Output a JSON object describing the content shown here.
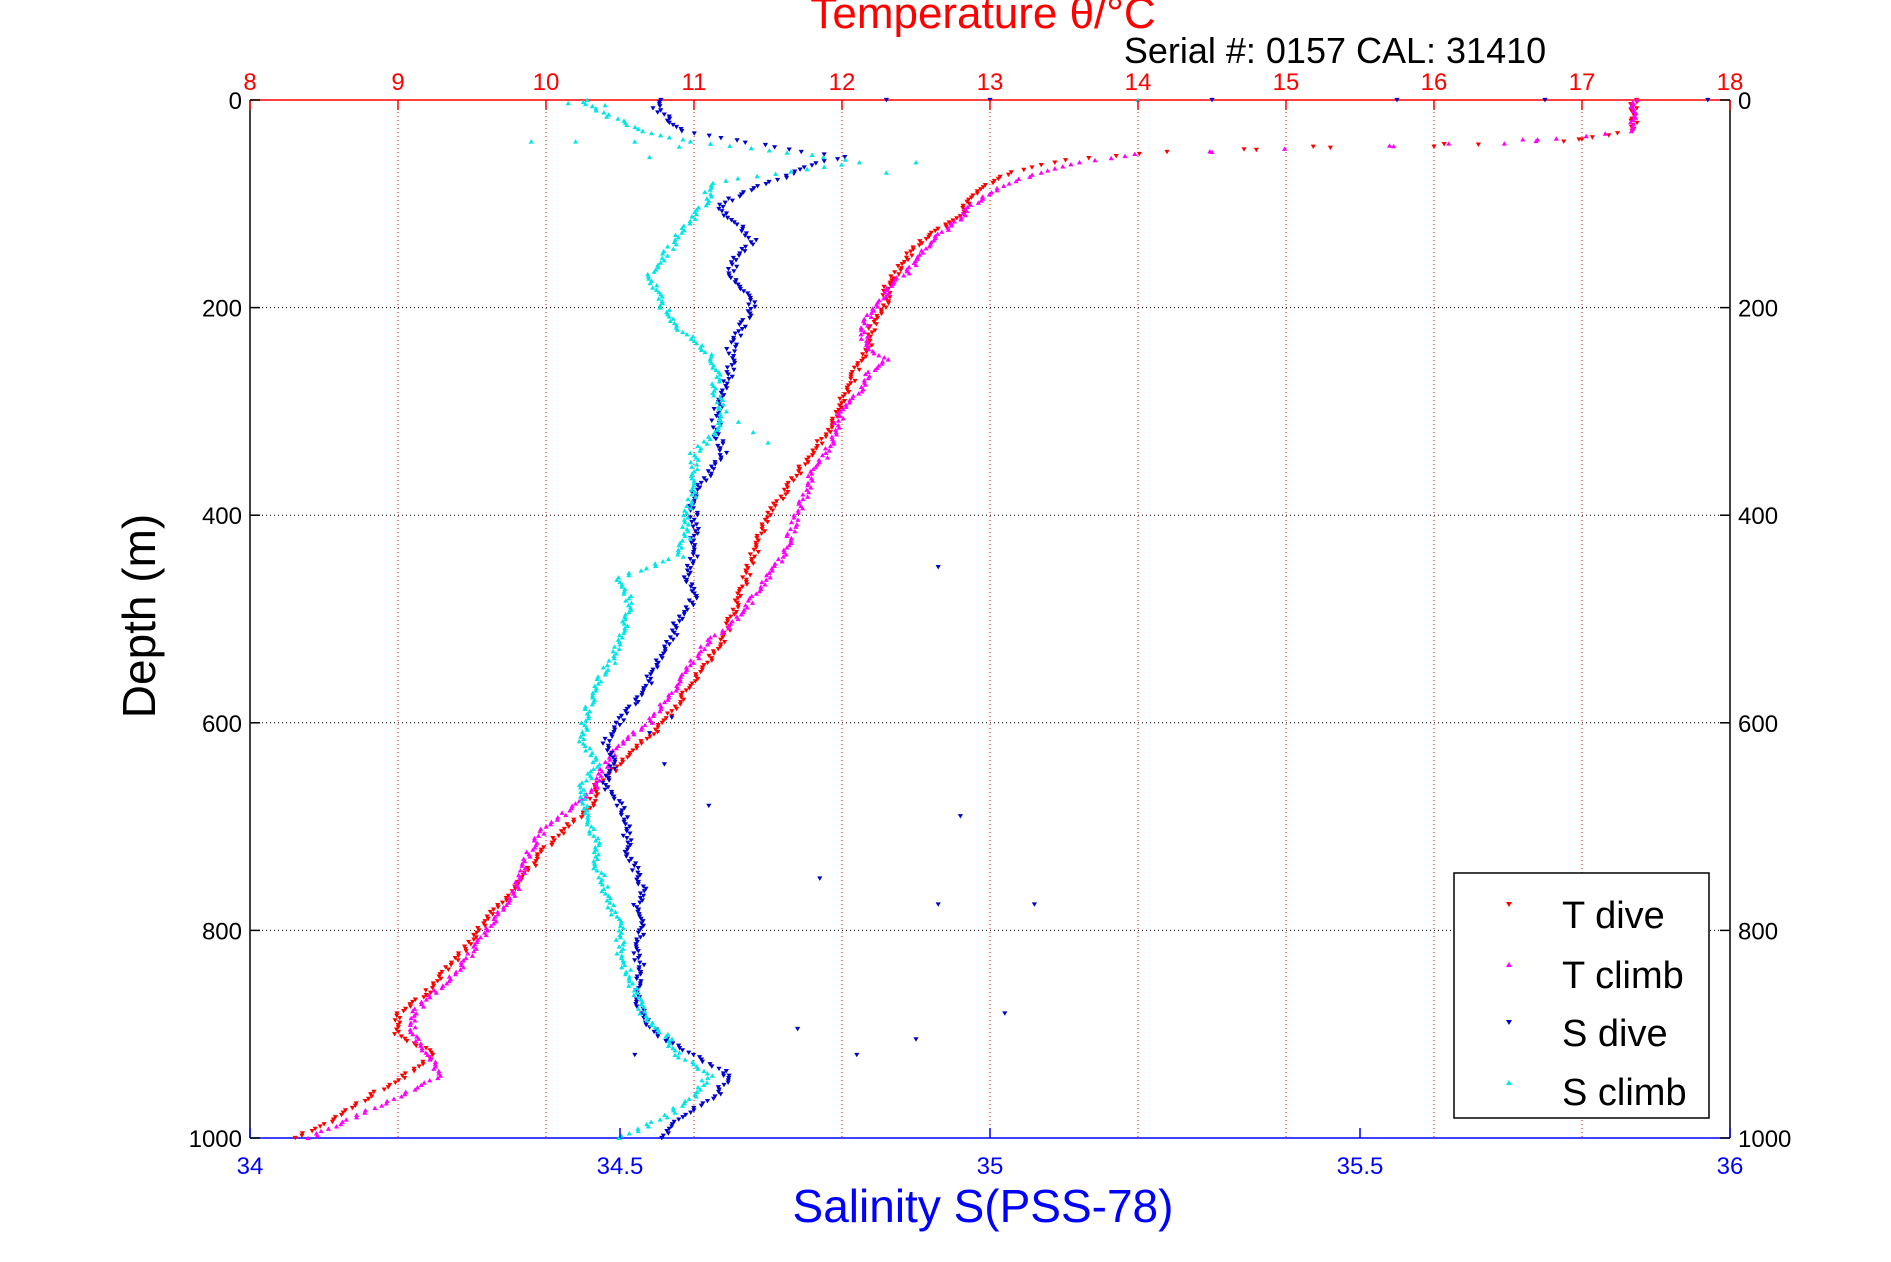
{
  "chart_data": {
    "type": "scatter",
    "title": "Temperature θ/°C",
    "subtitle": "Serial #: 0157  CAL: 31410",
    "xlabel": "Salinity S(PSS-78)",
    "ylabel": "Depth (m)",
    "xlim": [
      34,
      36
    ],
    "x2lim": [
      8,
      18
    ],
    "ylim": [
      0,
      1000
    ],
    "y_reversed": true,
    "grid": true,
    "legend_position": "bottom-right",
    "x_ticks": [
      "34",
      "34.5",
      "35",
      "35.5",
      "36"
    ],
    "x2_ticks": [
      "8",
      "9",
      "10",
      "11",
      "12",
      "13",
      "14",
      "15",
      "16",
      "17",
      "18"
    ],
    "y_ticks": [
      "0",
      "200",
      "400",
      "600",
      "800",
      "1000"
    ],
    "colors": {
      "temperature_axis": "#ff0000",
      "salinity_axis": "#0000ff",
      "t_dive": "#ff0000",
      "t_climb": "#ff00ff",
      "s_dive": "#0000cc",
      "s_climb": "#00e5e5"
    },
    "series": [
      {
        "name": "T dive",
        "axis": "temperature",
        "marker": "down-triangle",
        "color": "#ff0000",
        "points": [
          [
            17.35,
            0
          ],
          [
            17.35,
            10
          ],
          [
            17.35,
            20
          ],
          [
            17.35,
            30
          ],
          [
            16.9,
            40
          ],
          [
            15.2,
            45
          ],
          [
            14.2,
            50
          ],
          [
            13.5,
            58
          ],
          [
            13.3,
            65
          ],
          [
            13.1,
            72
          ],
          [
            13.0,
            80
          ],
          [
            12.9,
            90
          ],
          [
            12.85,
            100
          ],
          [
            12.8,
            110
          ],
          [
            12.7,
            120
          ],
          [
            12.6,
            130
          ],
          [
            12.5,
            140
          ],
          [
            12.45,
            150
          ],
          [
            12.4,
            160
          ],
          [
            12.35,
            170
          ],
          [
            12.3,
            180
          ],
          [
            12.3,
            190
          ],
          [
            12.3,
            200
          ],
          [
            12.25,
            210
          ],
          [
            12.2,
            220
          ],
          [
            12.2,
            230
          ],
          [
            12.15,
            245
          ],
          [
            12.1,
            260
          ],
          [
            12.05,
            275
          ],
          [
            12.0,
            290
          ],
          [
            11.95,
            305
          ],
          [
            11.9,
            320
          ],
          [
            11.8,
            340
          ],
          [
            11.7,
            360
          ],
          [
            11.6,
            380
          ],
          [
            11.5,
            400
          ],
          [
            11.45,
            420
          ],
          [
            11.4,
            440
          ],
          [
            11.35,
            460
          ],
          [
            11.3,
            480
          ],
          [
            11.25,
            500
          ],
          [
            11.2,
            520
          ],
          [
            11.1,
            540
          ],
          [
            11.0,
            560
          ],
          [
            10.9,
            580
          ],
          [
            10.8,
            600
          ],
          [
            10.65,
            620
          ],
          [
            10.5,
            640
          ],
          [
            10.35,
            660
          ],
          [
            10.3,
            680
          ],
          [
            10.15,
            700
          ],
          [
            10.0,
            720
          ],
          [
            9.9,
            740
          ],
          [
            9.8,
            760
          ],
          [
            9.65,
            780
          ],
          [
            9.55,
            800
          ],
          [
            9.45,
            820
          ],
          [
            9.3,
            840
          ],
          [
            9.2,
            860
          ],
          [
            9.0,
            880
          ],
          [
            9.0,
            900
          ],
          [
            9.25,
            920
          ],
          [
            9.05,
            940
          ],
          [
            8.8,
            960
          ],
          [
            8.6,
            980
          ],
          [
            8.3,
            1000
          ]
        ]
      },
      {
        "name": "T climb",
        "axis": "temperature",
        "marker": "up-triangle",
        "color": "#ff00ff",
        "points": [
          [
            17.35,
            0
          ],
          [
            17.35,
            15
          ],
          [
            17.35,
            30
          ],
          [
            16.5,
            42
          ],
          [
            15.0,
            47
          ],
          [
            14.0,
            52
          ],
          [
            13.6,
            60
          ],
          [
            13.4,
            68
          ],
          [
            13.2,
            76
          ],
          [
            13.05,
            85
          ],
          [
            12.95,
            95
          ],
          [
            12.85,
            105
          ],
          [
            12.8,
            115
          ],
          [
            12.7,
            125
          ],
          [
            12.6,
            135
          ],
          [
            12.55,
            145
          ],
          [
            12.5,
            155
          ],
          [
            12.45,
            165
          ],
          [
            12.35,
            175
          ],
          [
            12.3,
            185
          ],
          [
            12.25,
            195
          ],
          [
            12.2,
            205
          ],
          [
            12.15,
            215
          ],
          [
            12.15,
            230
          ],
          [
            12.2,
            240
          ],
          [
            12.3,
            250
          ],
          [
            12.2,
            260
          ],
          [
            12.15,
            270
          ],
          [
            12.1,
            285
          ],
          [
            12.0,
            300
          ],
          [
            11.95,
            320
          ],
          [
            11.9,
            340
          ],
          [
            11.8,
            360
          ],
          [
            11.75,
            380
          ],
          [
            11.7,
            400
          ],
          [
            11.65,
            420
          ],
          [
            11.6,
            440
          ],
          [
            11.5,
            460
          ],
          [
            11.4,
            480
          ],
          [
            11.3,
            500
          ],
          [
            11.1,
            520
          ],
          [
            11.0,
            540
          ],
          [
            10.9,
            560
          ],
          [
            10.8,
            580
          ],
          [
            10.7,
            600
          ],
          [
            10.5,
            620
          ],
          [
            10.4,
            640
          ],
          [
            10.35,
            660
          ],
          [
            10.2,
            680
          ],
          [
            10.0,
            700
          ],
          [
            9.9,
            720
          ],
          [
            9.85,
            740
          ],
          [
            9.8,
            760
          ],
          [
            9.7,
            780
          ],
          [
            9.6,
            800
          ],
          [
            9.5,
            820
          ],
          [
            9.4,
            840
          ],
          [
            9.25,
            860
          ],
          [
            9.1,
            880
          ],
          [
            9.1,
            900
          ],
          [
            9.2,
            920
          ],
          [
            9.3,
            940
          ],
          [
            9.0,
            960
          ],
          [
            8.7,
            980
          ],
          [
            8.4,
            1000
          ]
        ]
      },
      {
        "name": "S dive",
        "axis": "salinity",
        "marker": "down-triangle",
        "color": "#0000cc",
        "points": [
          [
            34.55,
            0
          ],
          [
            34.55,
            10
          ],
          [
            34.57,
            20
          ],
          [
            34.58,
            30
          ],
          [
            34.75,
            50
          ],
          [
            34.8,
            55
          ],
          [
            34.75,
            65
          ],
          [
            34.72,
            75
          ],
          [
            34.68,
            85
          ],
          [
            34.65,
            95
          ],
          [
            34.63,
            105
          ],
          [
            34.66,
            120
          ],
          [
            34.68,
            135
          ],
          [
            34.66,
            150
          ],
          [
            34.65,
            165
          ],
          [
            34.66,
            180
          ],
          [
            34.68,
            195
          ],
          [
            34.67,
            210
          ],
          [
            34.66,
            225
          ],
          [
            34.65,
            240
          ],
          [
            34.65,
            260
          ],
          [
            34.64,
            280
          ],
          [
            34.63,
            300
          ],
          [
            34.63,
            320
          ],
          [
            34.64,
            340
          ],
          [
            34.62,
            360
          ],
          [
            34.6,
            380
          ],
          [
            34.6,
            400
          ],
          [
            34.6,
            420
          ],
          [
            34.6,
            440
          ],
          [
            34.59,
            460
          ],
          [
            34.6,
            480
          ],
          [
            34.58,
            500
          ],
          [
            34.57,
            520
          ],
          [
            34.55,
            540
          ],
          [
            34.54,
            560
          ],
          [
            34.52,
            580
          ],
          [
            34.5,
            600
          ],
          [
            34.48,
            620
          ],
          [
            34.49,
            640
          ],
          [
            34.48,
            660
          ],
          [
            34.5,
            680
          ],
          [
            34.51,
            700
          ],
          [
            34.51,
            720
          ],
          [
            34.52,
            740
          ],
          [
            34.53,
            760
          ],
          [
            34.52,
            780
          ],
          [
            34.53,
            800
          ],
          [
            34.52,
            820
          ],
          [
            34.53,
            840
          ],
          [
            34.52,
            860
          ],
          [
            34.53,
            880
          ],
          [
            34.55,
            900
          ],
          [
            34.6,
            920
          ],
          [
            34.65,
            940
          ],
          [
            34.63,
            960
          ],
          [
            34.58,
            980
          ],
          [
            34.56,
            1000
          ]
        ]
      },
      {
        "name": "S climb",
        "axis": "salinity",
        "marker": "up-triangle",
        "color": "#00e5e5",
        "points": [
          [
            34.45,
            0
          ],
          [
            34.47,
            10
          ],
          [
            34.5,
            20
          ],
          [
            34.53,
            30
          ],
          [
            34.6,
            40
          ],
          [
            34.78,
            55
          ],
          [
            34.82,
            60
          ],
          [
            34.62,
            80
          ],
          [
            34.62,
            95
          ],
          [
            34.6,
            110
          ],
          [
            34.58,
            130
          ],
          [
            34.56,
            150
          ],
          [
            34.54,
            170
          ],
          [
            34.55,
            185
          ],
          [
            34.56,
            200
          ],
          [
            34.57,
            215
          ],
          [
            34.6,
            230
          ],
          [
            34.62,
            245
          ],
          [
            34.63,
            260
          ],
          [
            34.63,
            280
          ],
          [
            34.64,
            300
          ],
          [
            34.63,
            320
          ],
          [
            34.6,
            340
          ],
          [
            34.6,
            360
          ],
          [
            34.6,
            380
          ],
          [
            34.59,
            400
          ],
          [
            34.59,
            420
          ],
          [
            34.58,
            440
          ],
          [
            34.5,
            460
          ],
          [
            34.51,
            480
          ],
          [
            34.51,
            500
          ],
          [
            34.5,
            520
          ],
          [
            34.49,
            540
          ],
          [
            34.47,
            560
          ],
          [
            34.46,
            580
          ],
          [
            34.45,
            600
          ],
          [
            34.45,
            620
          ],
          [
            34.47,
            640
          ],
          [
            34.45,
            660
          ],
          [
            34.45,
            680
          ],
          [
            34.46,
            700
          ],
          [
            34.47,
            720
          ],
          [
            34.47,
            740
          ],
          [
            34.48,
            760
          ],
          [
            34.49,
            780
          ],
          [
            34.5,
            800
          ],
          [
            34.5,
            820
          ],
          [
            34.51,
            840
          ],
          [
            34.52,
            860
          ],
          [
            34.53,
            880
          ],
          [
            34.56,
            900
          ],
          [
            34.58,
            920
          ],
          [
            34.62,
            940
          ],
          [
            34.6,
            960
          ],
          [
            34.56,
            980
          ],
          [
            34.5,
            1000
          ]
        ]
      }
    ],
    "outliers": {
      "s_dive": [
        [
          34.93,
          450
        ],
        [
          34.96,
          690
        ],
        [
          35.06,
          775
        ],
        [
          34.93,
          775
        ],
        [
          34.77,
          750
        ],
        [
          35.02,
          880
        ],
        [
          34.9,
          905
        ],
        [
          34.82,
          920
        ],
        [
          34.74,
          895
        ],
        [
          34.62,
          680
        ],
        [
          34.64,
          940
        ],
        [
          34.57,
          595
        ],
        [
          34.54,
          610
        ],
        [
          34.56,
          640
        ],
        [
          34.52,
          920
        ],
        [
          35.3,
          0
        ],
        [
          35.55,
          0
        ],
        [
          35.75,
          0
        ],
        [
          35.97,
          0
        ],
        [
          35.0,
          0
        ],
        [
          34.86,
          0
        ]
      ],
      "s_climb": [
        [
          34.38,
          40
        ],
        [
          34.44,
          40
        ],
        [
          34.9,
          60
        ],
        [
          34.86,
          70
        ],
        [
          34.58,
          45
        ],
        [
          34.52,
          40
        ],
        [
          34.54,
          55
        ],
        [
          34.68,
          320
        ],
        [
          34.7,
          330
        ],
        [
          34.66,
          310
        ],
        [
          35.2,
          0
        ],
        [
          34.48,
          5
        ],
        [
          34.43,
          3
        ]
      ],
      "t_dive": [
        [
          16.3,
          43
        ],
        [
          15.3,
          46
        ],
        [
          14.8,
          48
        ],
        [
          17.0,
          38
        ],
        [
          16.0,
          45
        ]
      ],
      "t_climb": [
        [
          16.6,
          38
        ],
        [
          16.7,
          38
        ],
        [
          15.7,
          44
        ],
        [
          14.5,
          50
        ],
        [
          16.1,
          42
        ]
      ]
    }
  },
  "legend": {
    "items": [
      {
        "label": "T dive",
        "marker": "down-triangle",
        "color": "#ff0000"
      },
      {
        "label": "T climb",
        "marker": "up-triangle",
        "color": "#ff00ff"
      },
      {
        "label": "S dive",
        "marker": "down-triangle",
        "color": "#0000cc"
      },
      {
        "label": "S climb",
        "marker": "up-triangle",
        "color": "#00e5e5"
      }
    ]
  }
}
